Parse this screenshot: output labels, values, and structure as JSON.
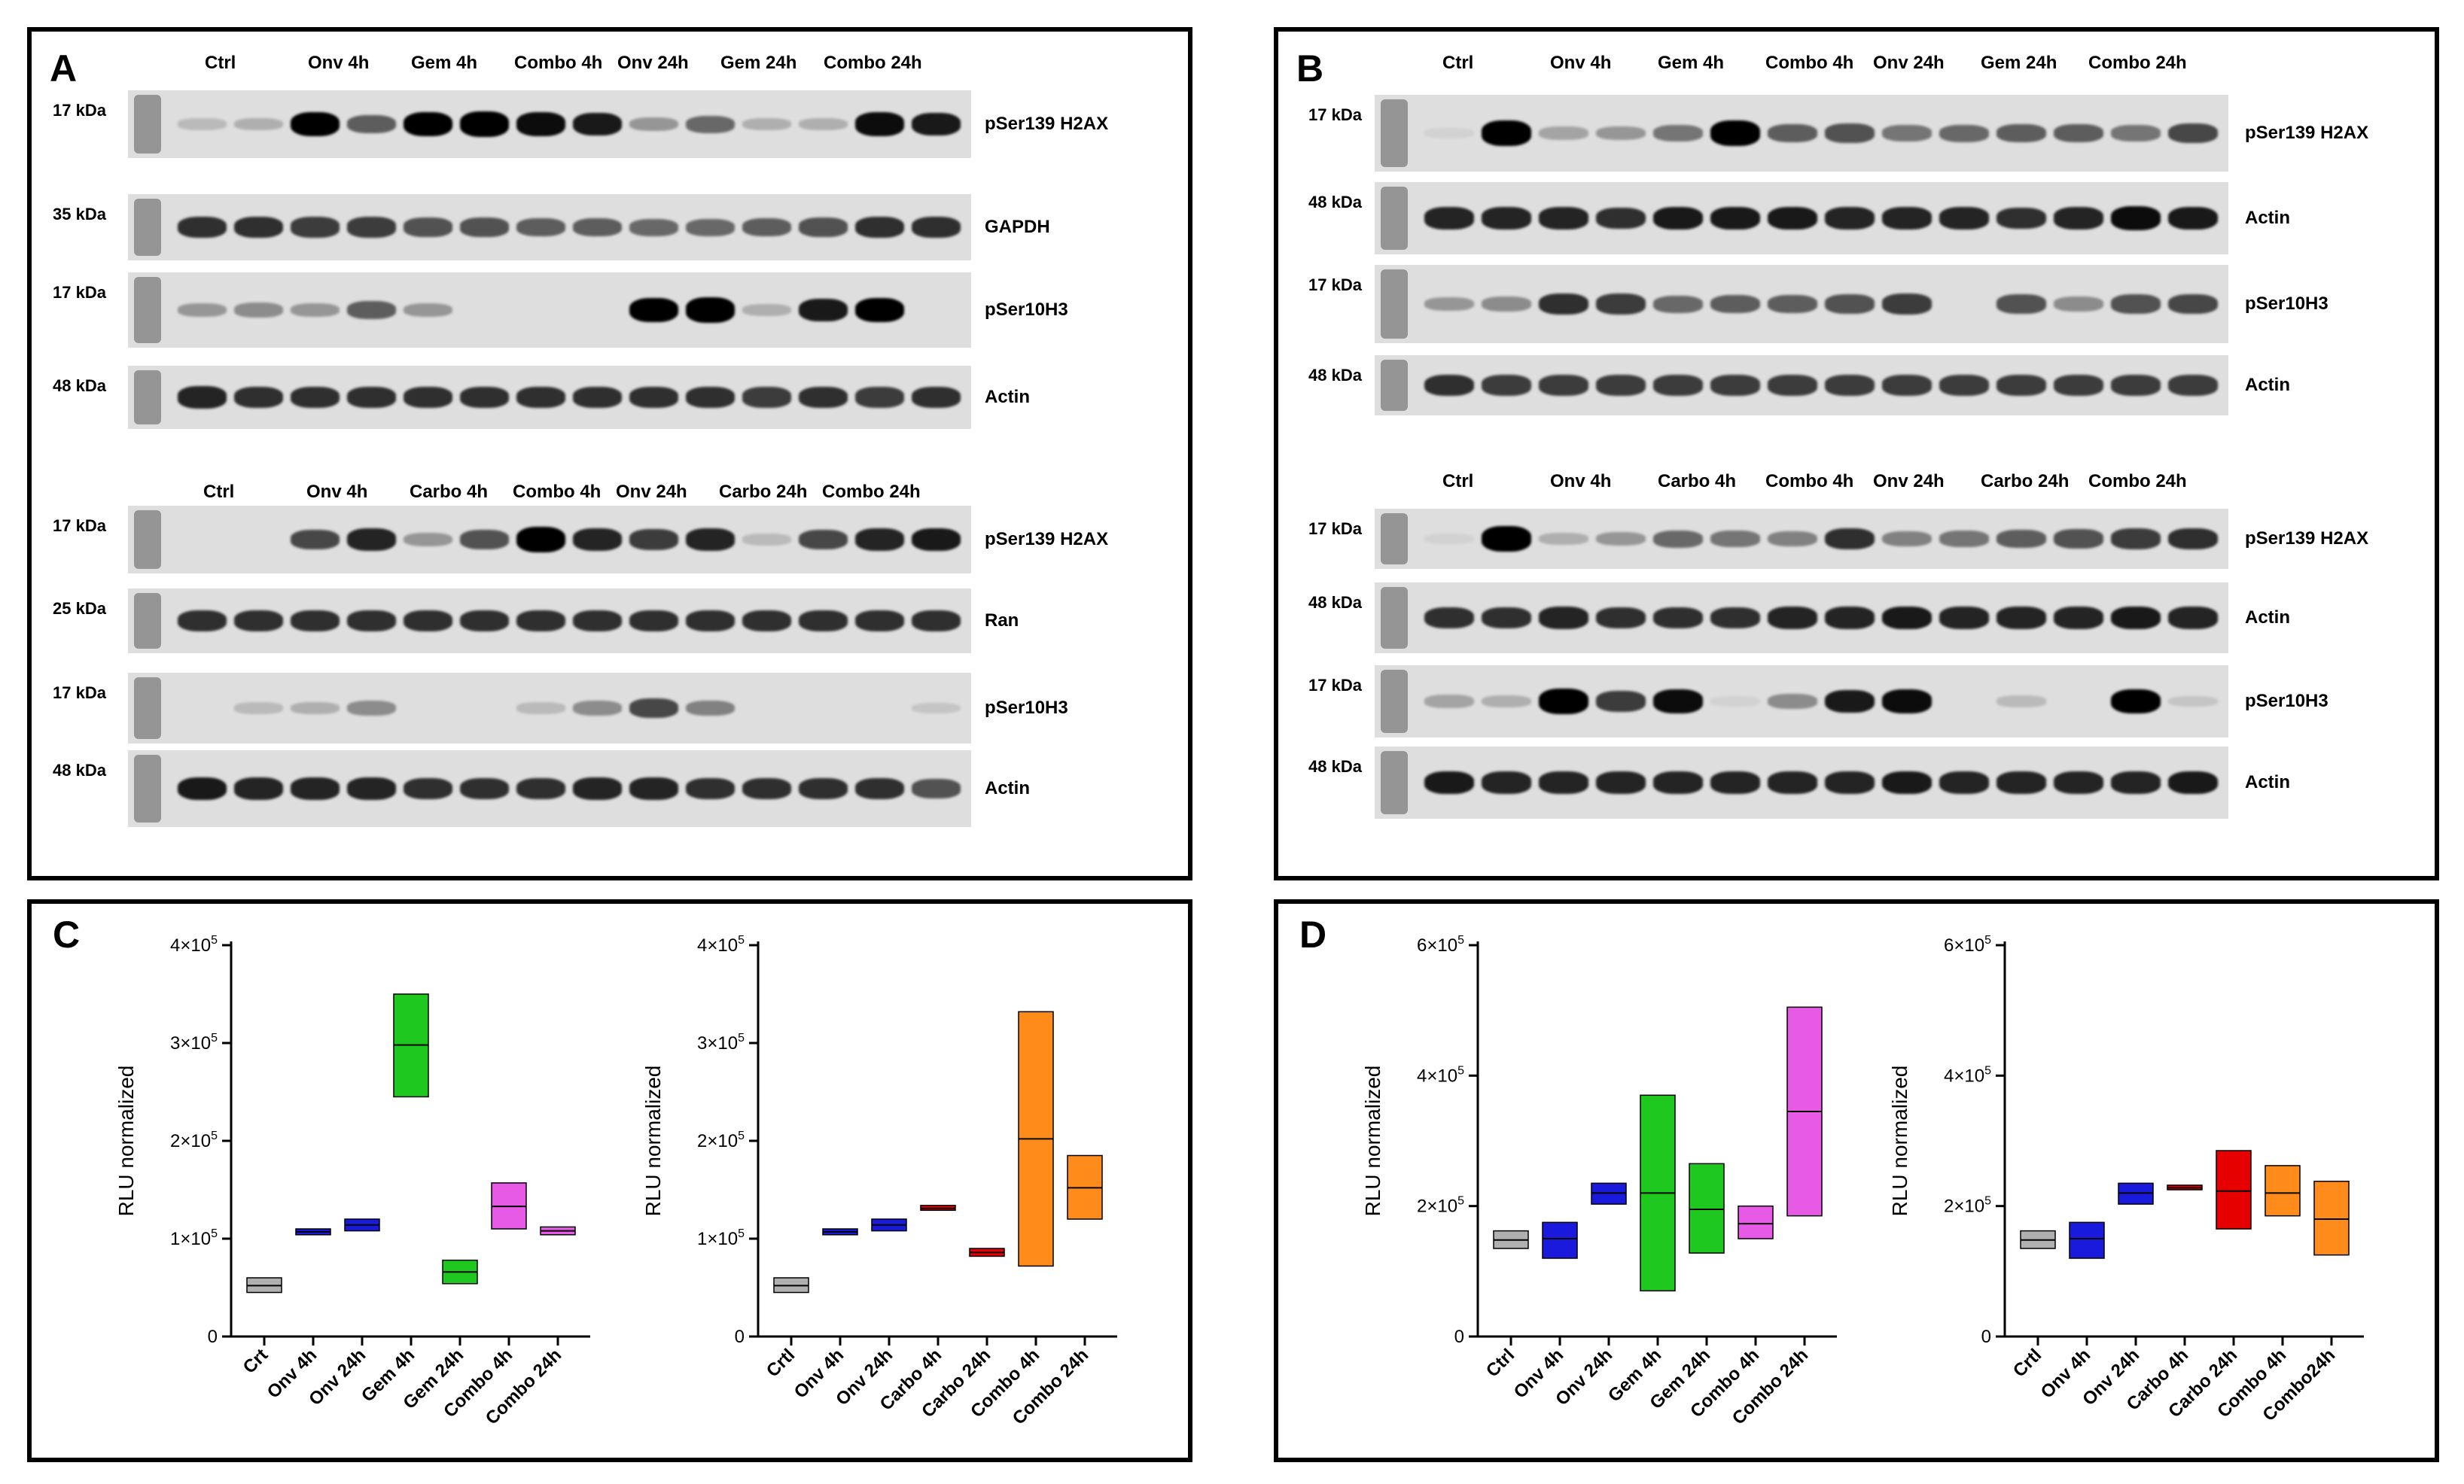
{
  "panels": {
    "A": {
      "letter": "A",
      "top": {
        "lanes": [
          "Ctrl",
          "Onv  4h",
          "Gem 4h",
          "Combo 4h",
          "Onv 24h",
          "Gem 24h",
          "Combo 24h"
        ],
        "blots": [
          {
            "marker": "17 kDa",
            "protein": "pSer139 H2AX",
            "intensities": [
              0.15,
              0.2,
              0.95,
              0.55,
              0.95,
              1,
              0.9,
              0.85,
              0.3,
              0.5,
              0.2,
              0.2,
              0.9,
              0.85
            ]
          },
          {
            "marker": "35 kDa",
            "protein": "GAPDH",
            "intensities": [
              0.75,
              0.75,
              0.7,
              0.7,
              0.6,
              0.6,
              0.55,
              0.55,
              0.5,
              0.5,
              0.55,
              0.6,
              0.75,
              0.75
            ]
          },
          {
            "marker": "17 kDa",
            "protein": "pSer10H3",
            "intensities": [
              0.3,
              0.35,
              0.3,
              0.55,
              0.3,
              0,
              0,
              0,
              0.95,
              1,
              0.2,
              0.85,
              0.95,
              0
            ]
          },
          {
            "marker": "48 kDa",
            "protein": "Actin",
            "intensities": [
              0.8,
              0.75,
              0.75,
              0.75,
              0.75,
              0.75,
              0.75,
              0.75,
              0.75,
              0.75,
              0.7,
              0.75,
              0.7,
              0.75
            ]
          }
        ]
      },
      "bottom": {
        "lanes": [
          "Ctrl",
          "Onv  4h",
          "Carbo 4h",
          "Combo 4h",
          "Onv 24h",
          "Carbo 24h",
          "Combo 24h"
        ],
        "blots": [
          {
            "marker": "17 kDa",
            "protein": "pSer139 H2AX",
            "intensities": [
              0,
              0,
              0.65,
              0.8,
              0.3,
              0.6,
              1,
              0.8,
              0.7,
              0.8,
              0.15,
              0.65,
              0.8,
              0.85
            ]
          },
          {
            "marker": "25 kDa",
            "protein": "Ran",
            "intensities": [
              0.75,
              0.75,
              0.75,
              0.75,
              0.75,
              0.75,
              0.75,
              0.75,
              0.75,
              0.75,
              0.75,
              0.75,
              0.75,
              0.75
            ]
          },
          {
            "marker": "17 kDa",
            "protein": "pSer10H3",
            "intensities": [
              0,
              0.15,
              0.2,
              0.35,
              0,
              0,
              0.15,
              0.35,
              0.65,
              0.4,
              0,
              0,
              0,
              0.1
            ]
          },
          {
            "marker": "48 kDa",
            "protein": "Actin",
            "intensities": [
              0.85,
              0.8,
              0.8,
              0.8,
              0.75,
              0.75,
              0.75,
              0.8,
              0.8,
              0.75,
              0.75,
              0.75,
              0.75,
              0.6
            ]
          }
        ]
      }
    },
    "B": {
      "letter": "B",
      "top": {
        "lanes": [
          "Ctrl",
          "Onv  4h",
          "Gem 4h",
          "Combo 4h",
          "Onv 24h",
          "Gem 24h",
          "Combo 24h"
        ],
        "blots": [
          {
            "marker": "17 kDa",
            "protein": "pSer139 H2AX",
            "intensities": [
              0.05,
              1,
              0.25,
              0.3,
              0.45,
              1,
              0.55,
              0.6,
              0.45,
              0.5,
              0.55,
              0.55,
              0.45,
              0.65
            ]
          },
          {
            "marker": "48 kDa",
            "protein": "Actin",
            "intensities": [
              0.8,
              0.8,
              0.8,
              0.75,
              0.85,
              0.85,
              0.85,
              0.8,
              0.8,
              0.8,
              0.75,
              0.8,
              0.9,
              0.85
            ]
          },
          {
            "marker": "17 kDa",
            "protein": "pSer10H3",
            "intensities": [
              0.3,
              0.35,
              0.75,
              0.7,
              0.5,
              0.55,
              0.55,
              0.6,
              0.7,
              0,
              0.6,
              0.35,
              0.6,
              0.65
            ]
          },
          {
            "marker": "48 kDa",
            "protein": "Actin",
            "intensities": [
              0.75,
              0.7,
              0.7,
              0.7,
              0.7,
              0.7,
              0.7,
              0.7,
              0.7,
              0.7,
              0.7,
              0.7,
              0.7,
              0.7
            ]
          }
        ]
      },
      "bottom": {
        "lanes": [
          "Ctrl",
          "Onv  4h",
          "Carbo 4h",
          "Combo 4h",
          "Onv 24h",
          "Carbo 24h",
          "Combo 24h"
        ],
        "blots": [
          {
            "marker": "17 kDa",
            "protein": "pSer139 H2AX",
            "intensities": [
              0.05,
              1,
              0.2,
              0.3,
              0.5,
              0.45,
              0.4,
              0.75,
              0.4,
              0.45,
              0.55,
              0.6,
              0.7,
              0.75
            ]
          },
          {
            "marker": "48 kDa",
            "protein": "Actin",
            "intensities": [
              0.75,
              0.75,
              0.8,
              0.75,
              0.75,
              0.75,
              0.8,
              0.8,
              0.85,
              0.8,
              0.8,
              0.8,
              0.85,
              0.8
            ]
          },
          {
            "marker": "17 kDa",
            "protein": "pSer10H3",
            "intensities": [
              0.25,
              0.2,
              1,
              0.7,
              0.9,
              0.05,
              0.35,
              0.85,
              0.9,
              0,
              0.15,
              0,
              0.95,
              0.1
            ]
          },
          {
            "marker": "48 kDa",
            "protein": "Actin",
            "intensities": [
              0.85,
              0.8,
              0.8,
              0.8,
              0.8,
              0.8,
              0.8,
              0.8,
              0.85,
              0.8,
              0.8,
              0.8,
              0.8,
              0.85
            ]
          }
        ]
      }
    },
    "C": {
      "letter": "C"
    },
    "D": {
      "letter": "D"
    }
  },
  "colors": {
    "Ctrl": "#b0b0b0",
    "Onv": "#1a1adc",
    "Gem": "#1ec81e",
    "Combo": "#e65ae6",
    "Carbo": "#e60000",
    "ComboOrange": "#ff8c1a"
  },
  "chart_data": [
    {
      "id": "C-left",
      "type": "floating-bar",
      "ylabel": "RLU normalized",
      "ylim": [
        0,
        400000
      ],
      "yticks": [
        {
          "v": 0,
          "base": "0",
          "exp": ""
        },
        {
          "v": 100000,
          "base": "1×10",
          "exp": "5"
        },
        {
          "v": 200000,
          "base": "2×10",
          "exp": "5"
        },
        {
          "v": 300000,
          "base": "3×10",
          "exp": "5"
        },
        {
          "v": 400000,
          "base": "4×10",
          "exp": "5"
        }
      ],
      "categories": [
        "Crt",
        "Onv 4h",
        "Onv 24h",
        "Gem 4h",
        "Gem 24h",
        "Combo 4h",
        "Combo 24h"
      ],
      "min": [
        45000,
        104000,
        108000,
        245000,
        54000,
        110000,
        104000
      ],
      "max": [
        60000,
        110000,
        120000,
        350000,
        78000,
        157000,
        112000
      ],
      "line": [
        52000,
        107000,
        114000,
        298000,
        66000,
        133000,
        108000
      ],
      "colors": [
        "#b0b0b0",
        "#1a1adc",
        "#1a1adc",
        "#1ec81e",
        "#1ec81e",
        "#e65ae6",
        "#e65ae6"
      ]
    },
    {
      "id": "C-right",
      "type": "floating-bar",
      "ylabel": "RLU normalized",
      "ylim": [
        0,
        400000
      ],
      "yticks": [
        {
          "v": 0,
          "base": "0",
          "exp": ""
        },
        {
          "v": 100000,
          "base": "1×10",
          "exp": "5"
        },
        {
          "v": 200000,
          "base": "2×10",
          "exp": "5"
        },
        {
          "v": 300000,
          "base": "3×10",
          "exp": "5"
        },
        {
          "v": 400000,
          "base": "4×10",
          "exp": "5"
        }
      ],
      "categories": [
        "Crtl",
        "Onv 4h",
        "Onv 24h",
        "Carbo 4h",
        "Carbo 24h",
        "Combo 4h",
        "Combo 24h"
      ],
      "min": [
        45000,
        104000,
        108000,
        129000,
        82000,
        72000,
        120000
      ],
      "max": [
        60000,
        110000,
        120000,
        134000,
        90000,
        332000,
        185000
      ],
      "line": [
        52000,
        107000,
        114000,
        131000,
        86000,
        202000,
        152000
      ],
      "colors": [
        "#b0b0b0",
        "#1a1adc",
        "#1a1adc",
        "#e60000",
        "#e60000",
        "#ff8c1a",
        "#ff8c1a"
      ]
    },
    {
      "id": "D-left",
      "type": "floating-bar",
      "ylabel": "RLU normalized",
      "ylim": [
        0,
        600000
      ],
      "yticks": [
        {
          "v": 0,
          "base": "0",
          "exp": ""
        },
        {
          "v": 200000,
          "base": "2×10",
          "exp": "5"
        },
        {
          "v": 400000,
          "base": "4×10",
          "exp": "5"
        },
        {
          "v": 600000,
          "base": "6×10",
          "exp": "5"
        }
      ],
      "categories": [
        "Ctrl",
        "Onv 4h",
        "Onv 24h",
        "Gem 4h",
        "Gem 24h",
        "Combo 4h",
        "Combo 24h"
      ],
      "min": [
        135000,
        120000,
        203000,
        70000,
        128000,
        150000,
        185000
      ],
      "max": [
        162000,
        175000,
        235000,
        370000,
        265000,
        200000,
        505000
      ],
      "line": [
        148000,
        150000,
        220000,
        220000,
        195000,
        173000,
        345000
      ],
      "colors": [
        "#b0b0b0",
        "#1a1adc",
        "#1a1adc",
        "#1ec81e",
        "#1ec81e",
        "#e65ae6",
        "#e65ae6"
      ]
    },
    {
      "id": "D-right",
      "type": "floating-bar",
      "ylabel": "RLU normalized",
      "ylim": [
        0,
        600000
      ],
      "yticks": [
        {
          "v": 0,
          "base": "0",
          "exp": ""
        },
        {
          "v": 200000,
          "base": "2×10",
          "exp": "5"
        },
        {
          "v": 400000,
          "base": "4×10",
          "exp": "5"
        },
        {
          "v": 600000,
          "base": "6×10",
          "exp": "5"
        }
      ],
      "categories": [
        "Crtl",
        "Onv 4h",
        "Onv 24h",
        "Carbo 4h",
        "Carbo 24h",
        "Combo 4h",
        "Combo24h"
      ],
      "min": [
        135000,
        120000,
        203000,
        225000,
        165000,
        185000,
        125000
      ],
      "max": [
        162000,
        175000,
        235000,
        232000,
        285000,
        262000,
        238000
      ],
      "line": [
        148000,
        150000,
        220000,
        228000,
        223000,
        220000,
        180000
      ],
      "colors": [
        "#b0b0b0",
        "#1a1adc",
        "#1a1adc",
        "#e60000",
        "#e60000",
        "#ff8c1a",
        "#ff8c1a"
      ]
    }
  ]
}
